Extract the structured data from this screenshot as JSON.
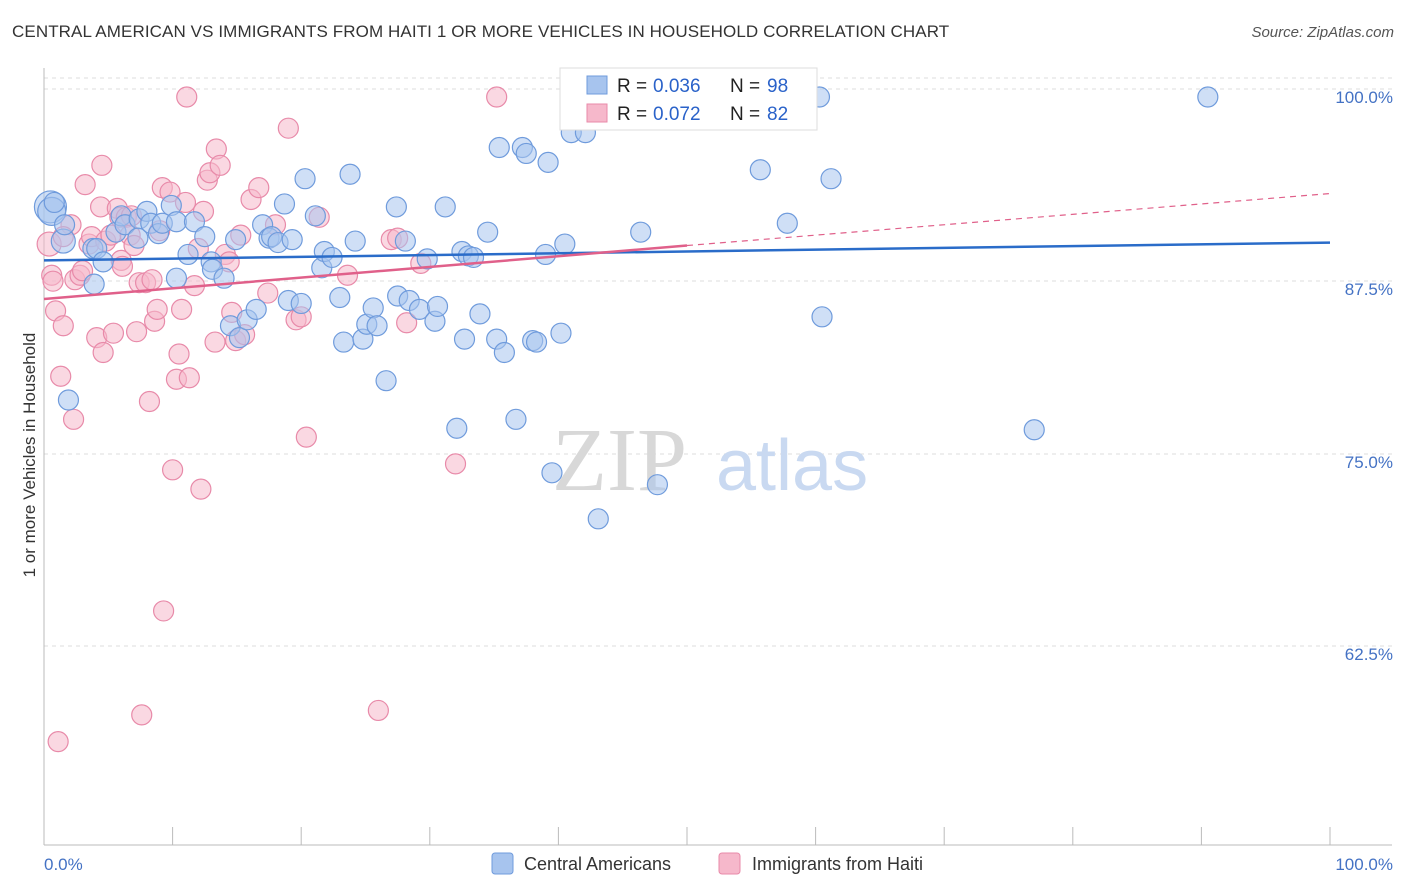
{
  "title": "CENTRAL AMERICAN VS IMMIGRANTS FROM HAITI 1 OR MORE VEHICLES IN HOUSEHOLD CORRELATION CHART",
  "source": "Source: ZipAtlas.com",
  "watermark": {
    "zip": "ZIP",
    "atlas": "atlas"
  },
  "colors": {
    "blue_fill": "#a7c4ee",
    "blue_stroke": "#6f9bdc",
    "blue_line": "#2a6cc9",
    "pink_fill": "#f6b8cb",
    "pink_stroke": "#e88aa9",
    "pink_line": "#e0608a",
    "axis_label": "#4472c4",
    "grid": "#dddddd"
  },
  "legend_top": {
    "rows": [
      {
        "r_label": "R =",
        "r_value": "0.036",
        "n_label": "N =",
        "n_value": "98"
      },
      {
        "r_label": "R =",
        "r_value": "0.072",
        "n_label": "N =",
        "n_value": "82"
      }
    ]
  },
  "legend_bottom": [
    "Central Americans",
    "Immigrants from Haiti"
  ],
  "chart_data": {
    "type": "scatter",
    "xlabel": "",
    "ylabel": "1 or more Vehicles in Household",
    "x_ticks": [
      "0.0%",
      "100.0%"
    ],
    "y_ticks": [
      "100.0%",
      "87.5%",
      "75.0%",
      "62.5%"
    ],
    "xlim": [
      0,
      100
    ],
    "ylim": [
      50.5,
      101.3
    ],
    "grid": true,
    "series": [
      {
        "name": "Central Americans",
        "trend": {
          "x0": 0,
          "y0": 89.0,
          "x1": 100,
          "y1": 90.2
        },
        "points": [
          [
            0.5,
            92.6
          ],
          [
            0.6,
            92.3
          ],
          [
            1.5,
            90.3
          ],
          [
            1.6,
            91.4
          ],
          [
            3.8,
            89.8
          ],
          [
            1.9,
            79.6
          ],
          [
            4.1,
            89.8
          ],
          [
            4.6,
            88.9
          ],
          [
            3.9,
            87.4
          ],
          [
            5.6,
            90.9
          ],
          [
            6.0,
            92.0
          ],
          [
            6.3,
            91.4
          ],
          [
            7.4,
            91.8
          ],
          [
            7.3,
            90.5
          ],
          [
            8.0,
            92.3
          ],
          [
            8.3,
            91.5
          ],
          [
            8.9,
            90.8
          ],
          [
            9.2,
            91.5
          ],
          [
            9.9,
            92.7
          ],
          [
            10.3,
            91.6
          ],
          [
            10.3,
            87.8
          ],
          [
            11.2,
            89.4
          ],
          [
            11.7,
            91.6
          ],
          [
            12.5,
            90.6
          ],
          [
            13.0,
            88.9
          ],
          [
            13.1,
            88.4
          ],
          [
            14.0,
            87.8
          ],
          [
            14.5,
            84.6
          ],
          [
            14.9,
            90.4
          ],
          [
            15.2,
            83.8
          ],
          [
            15.8,
            85.0
          ],
          [
            16.5,
            85.7
          ],
          [
            17.0,
            91.4
          ],
          [
            17.5,
            90.5
          ],
          [
            17.7,
            90.6
          ],
          [
            18.2,
            90.2
          ],
          [
            18.7,
            92.8
          ],
          [
            19.0,
            86.3
          ],
          [
            19.3,
            90.4
          ],
          [
            20.0,
            86.1
          ],
          [
            20.3,
            94.5
          ],
          [
            21.1,
            92.0
          ],
          [
            21.6,
            88.5
          ],
          [
            21.8,
            89.6
          ],
          [
            22.4,
            89.2
          ],
          [
            23.0,
            86.5
          ],
          [
            23.3,
            83.5
          ],
          [
            23.8,
            94.8
          ],
          [
            24.2,
            90.3
          ],
          [
            24.8,
            83.7
          ],
          [
            25.1,
            84.7
          ],
          [
            25.6,
            85.8
          ],
          [
            25.9,
            84.6
          ],
          [
            26.6,
            80.9
          ],
          [
            27.4,
            92.6
          ],
          [
            27.5,
            86.6
          ],
          [
            28.1,
            90.3
          ],
          [
            28.4,
            86.3
          ],
          [
            29.2,
            85.7
          ],
          [
            29.8,
            89.1
          ],
          [
            30.4,
            84.9
          ],
          [
            30.6,
            85.9
          ],
          [
            31.2,
            92.6
          ],
          [
            32.1,
            77.7
          ],
          [
            32.5,
            89.6
          ],
          [
            33.0,
            89.3
          ],
          [
            33.4,
            89.2
          ],
          [
            33.9,
            85.4
          ],
          [
            34.5,
            90.9
          ],
          [
            35.2,
            83.7
          ],
          [
            35.4,
            96.6
          ],
          [
            35.8,
            82.8
          ],
          [
            36.7,
            78.3
          ],
          [
            37.2,
            96.6
          ],
          [
            37.5,
            96.2
          ],
          [
            38.0,
            83.6
          ],
          [
            38.3,
            83.5
          ],
          [
            39.0,
            89.4
          ],
          [
            39.2,
            95.6
          ],
          [
            39.5,
            74.7
          ],
          [
            40.2,
            84.1
          ],
          [
            40.5,
            90.1
          ],
          [
            41.0,
            97.6
          ],
          [
            42.1,
            97.6
          ],
          [
            43.1,
            71.6
          ],
          [
            46.4,
            90.9
          ],
          [
            46.7,
            100.0
          ],
          [
            47.7,
            73.9
          ],
          [
            52.0,
            100.0
          ],
          [
            55.7,
            95.1
          ],
          [
            57.8,
            91.5
          ],
          [
            60.3,
            100.0
          ],
          [
            60.5,
            85.2
          ],
          [
            61.2,
            94.5
          ],
          [
            77.0,
            77.6
          ],
          [
            90.5,
            100.0
          ],
          [
            32.7,
            83.7
          ],
          [
            0.8,
            92.9
          ]
        ],
        "sizes": [
          16,
          14,
          12,
          10,
          10,
          10,
          10,
          10,
          10,
          10,
          10,
          10,
          10,
          10,
          10,
          10,
          10,
          10,
          10,
          10,
          10,
          10,
          10,
          10,
          10,
          10,
          10,
          10,
          10,
          10,
          10,
          10,
          10,
          10,
          10,
          10,
          10,
          10,
          10,
          10,
          10,
          10,
          10,
          10,
          10,
          10,
          10,
          10,
          10,
          10,
          10,
          10,
          10,
          10,
          10,
          10,
          10,
          10,
          10,
          10,
          10,
          10,
          10,
          10,
          10,
          10,
          10,
          10,
          10,
          10,
          10,
          10,
          10,
          10,
          10,
          10,
          10,
          10,
          10,
          10,
          10,
          10,
          10,
          10,
          10,
          10,
          10,
          10,
          10,
          10,
          10,
          10,
          10,
          10,
          10,
          10,
          10,
          10
        ]
      },
      {
        "name": "Immigrants from Haiti",
        "trend": {
          "x0": 0,
          "y0": 86.4,
          "x1": 50,
          "y1": 90.0,
          "dash_x1": 100,
          "dash_y1": 93.5
        },
        "points": [
          [
            0.4,
            90.1
          ],
          [
            0.6,
            88.0
          ],
          [
            0.7,
            87.6
          ],
          [
            0.9,
            85.6
          ],
          [
            1.1,
            56.6
          ],
          [
            1.3,
            81.2
          ],
          [
            1.5,
            84.6
          ],
          [
            2.1,
            91.4
          ],
          [
            2.3,
            78.3
          ],
          [
            2.4,
            87.7
          ],
          [
            2.8,
            88.0
          ],
          [
            3.0,
            88.3
          ],
          [
            3.2,
            94.1
          ],
          [
            3.5,
            90.1
          ],
          [
            3.7,
            90.6
          ],
          [
            4.1,
            83.8
          ],
          [
            4.4,
            92.6
          ],
          [
            4.5,
            95.4
          ],
          [
            4.6,
            82.8
          ],
          [
            4.8,
            90.3
          ],
          [
            5.2,
            90.7
          ],
          [
            5.4,
            84.1
          ],
          [
            5.7,
            92.5
          ],
          [
            5.9,
            91.9
          ],
          [
            6.0,
            89.0
          ],
          [
            6.1,
            88.6
          ],
          [
            6.4,
            91.9
          ],
          [
            6.7,
            90.7
          ],
          [
            6.8,
            92.0
          ],
          [
            7.0,
            90.0
          ],
          [
            7.2,
            84.2
          ],
          [
            7.4,
            87.5
          ],
          [
            7.6,
            58.4
          ],
          [
            7.9,
            87.5
          ],
          [
            8.2,
            79.5
          ],
          [
            8.4,
            87.7
          ],
          [
            8.6,
            84.9
          ],
          [
            8.8,
            85.7
          ],
          [
            9.0,
            91.0
          ],
          [
            9.2,
            93.9
          ],
          [
            9.3,
            65.4
          ],
          [
            9.8,
            93.6
          ],
          [
            10.0,
            74.9
          ],
          [
            10.3,
            81.0
          ],
          [
            10.5,
            82.7
          ],
          [
            10.7,
            85.7
          ],
          [
            11.0,
            92.9
          ],
          [
            11.3,
            81.1
          ],
          [
            11.7,
            87.3
          ],
          [
            12.0,
            89.8
          ],
          [
            12.2,
            73.6
          ],
          [
            12.4,
            92.3
          ],
          [
            12.7,
            94.4
          ],
          [
            12.9,
            94.9
          ],
          [
            13.3,
            83.5
          ],
          [
            13.4,
            96.5
          ],
          [
            13.7,
            95.4
          ],
          [
            14.1,
            89.4
          ],
          [
            14.4,
            88.9
          ],
          [
            14.9,
            83.6
          ],
          [
            15.3,
            90.7
          ],
          [
            15.6,
            84.0
          ],
          [
            16.1,
            93.1
          ],
          [
            16.7,
            93.9
          ],
          [
            17.4,
            86.8
          ],
          [
            18.0,
            91.4
          ],
          [
            19.0,
            97.9
          ],
          [
            19.6,
            85.0
          ],
          [
            20.0,
            85.2
          ],
          [
            20.4,
            77.1
          ],
          [
            21.4,
            91.9
          ],
          [
            23.6,
            88.0
          ],
          [
            26.0,
            58.7
          ],
          [
            27.0,
            90.4
          ],
          [
            27.5,
            90.5
          ],
          [
            28.2,
            84.8
          ],
          [
            29.3,
            88.8
          ],
          [
            32.0,
            75.3
          ],
          [
            35.2,
            100.0
          ],
          [
            14.6,
            85.5
          ],
          [
            1.5,
            90.6
          ],
          [
            11.1,
            100.0
          ]
        ],
        "sizes": [
          12,
          10,
          10,
          10,
          10,
          10,
          10,
          10,
          10,
          10,
          10,
          10,
          10,
          10,
          10,
          10,
          10,
          10,
          10,
          10,
          10,
          10,
          10,
          10,
          10,
          10,
          10,
          10,
          10,
          10,
          10,
          10,
          10,
          10,
          10,
          10,
          10,
          10,
          10,
          10,
          10,
          10,
          10,
          10,
          10,
          10,
          10,
          10,
          10,
          10,
          10,
          10,
          10,
          10,
          10,
          10,
          10,
          10,
          10,
          10,
          10,
          10,
          10,
          10,
          10,
          10,
          10,
          10,
          10,
          10,
          10,
          10,
          10,
          10,
          10,
          10,
          10,
          10,
          10,
          10,
          10,
          10
        ]
      }
    ]
  }
}
